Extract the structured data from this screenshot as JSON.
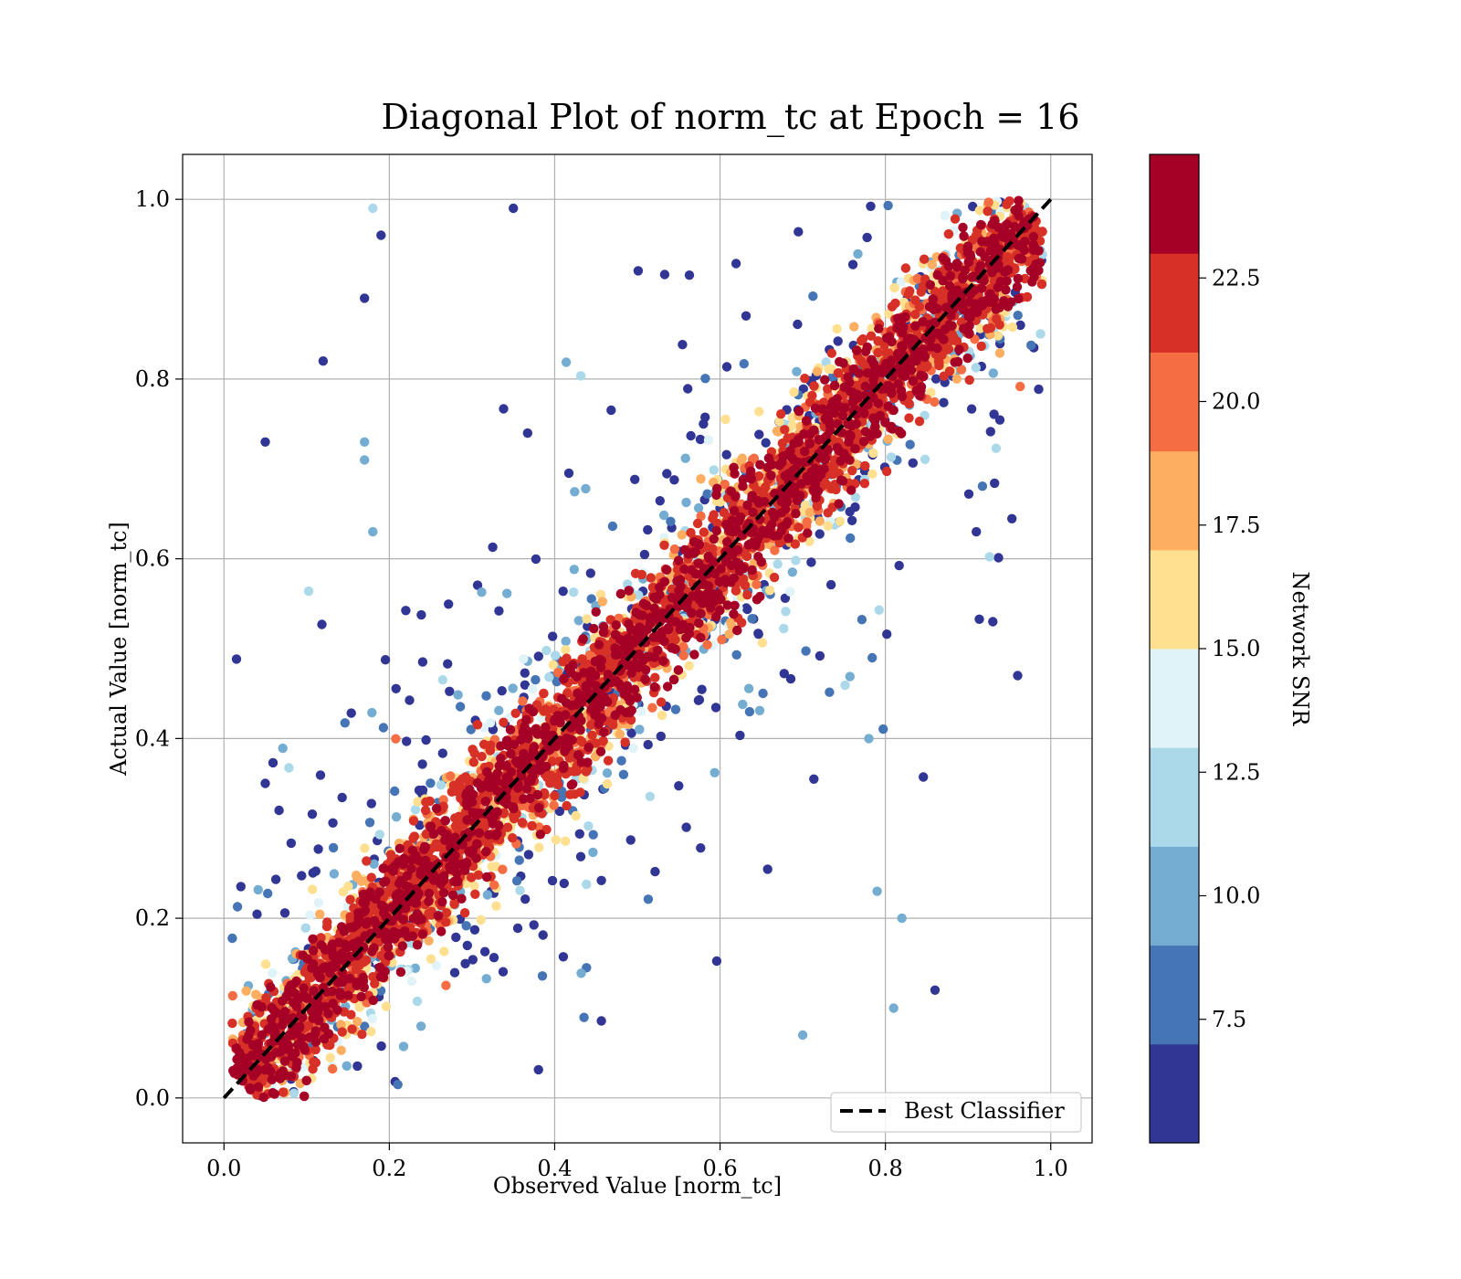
{
  "chart_data": {
    "type": "scatter",
    "title": "Diagonal Plot of norm_tc at Epoch = 16",
    "xlabel": "Observed Value [norm_tc]",
    "ylabel": "Actual Value [norm_tc]",
    "xlim": [
      -0.05,
      1.05
    ],
    "ylim": [
      -0.05,
      1.05
    ],
    "x_ticks": [
      "0.0",
      "0.2",
      "0.4",
      "0.6",
      "0.8",
      "1.0"
    ],
    "y_ticks": [
      "0.0",
      "0.2",
      "0.4",
      "0.6",
      "0.8",
      "1.0"
    ],
    "grid": true,
    "legend_position": "lower-right",
    "reference_line": {
      "name": "Best Classifier",
      "x": [
        0,
        1
      ],
      "y": [
        0,
        1
      ],
      "style": "dashed",
      "color": "#000000"
    },
    "colorbar": {
      "label": "Network SNR",
      "range": [
        5.0,
        25.0
      ],
      "ticks": [
        "7.5",
        "10.0",
        "12.5",
        "15.0",
        "17.5",
        "20.0",
        "22.5"
      ],
      "colors": [
        "#313695",
        "#4575b4",
        "#74add1",
        "#abd9e9",
        "#e0f3f8",
        "#fee090",
        "#fdae61",
        "#f46d43",
        "#d73027",
        "#a50026"
      ]
    },
    "sample_points": [
      {
        "x": 0.18,
        "y": 0.99,
        "snr": 11.5
      },
      {
        "x": 0.19,
        "y": 0.96,
        "snr": 6.0
      },
      {
        "x": 0.17,
        "y": 0.89,
        "snr": 6.0
      },
      {
        "x": 0.12,
        "y": 0.82,
        "snr": 6.0
      },
      {
        "x": 0.05,
        "y": 0.73,
        "snr": 6.0
      },
      {
        "x": 0.17,
        "y": 0.73,
        "snr": 10.0
      },
      {
        "x": 0.17,
        "y": 0.71,
        "snr": 9.5
      },
      {
        "x": 0.18,
        "y": 0.63,
        "snr": 9.0
      },
      {
        "x": 0.05,
        "y": 0.35,
        "snr": 6.0
      },
      {
        "x": 0.96,
        "y": 0.47,
        "snr": 6.0
      },
      {
        "x": 0.93,
        "y": 0.53,
        "snr": 6.0
      },
      {
        "x": 0.91,
        "y": 0.63,
        "snr": 6.0
      },
      {
        "x": 0.86,
        "y": 0.12,
        "snr": 6.0
      },
      {
        "x": 0.82,
        "y": 0.2,
        "snr": 9.5
      },
      {
        "x": 0.81,
        "y": 0.1,
        "snr": 9.0
      },
      {
        "x": 0.79,
        "y": 0.23,
        "snr": 9.0
      },
      {
        "x": 0.78,
        "y": 0.4,
        "snr": 9.5
      },
      {
        "x": 0.7,
        "y": 0.07,
        "snr": 10.0
      },
      {
        "x": 0.35,
        "y": 0.99,
        "snr": 6.0
      },
      {
        "x": 0.58,
        "y": 0.75,
        "snr": 6.0
      }
    ]
  }
}
